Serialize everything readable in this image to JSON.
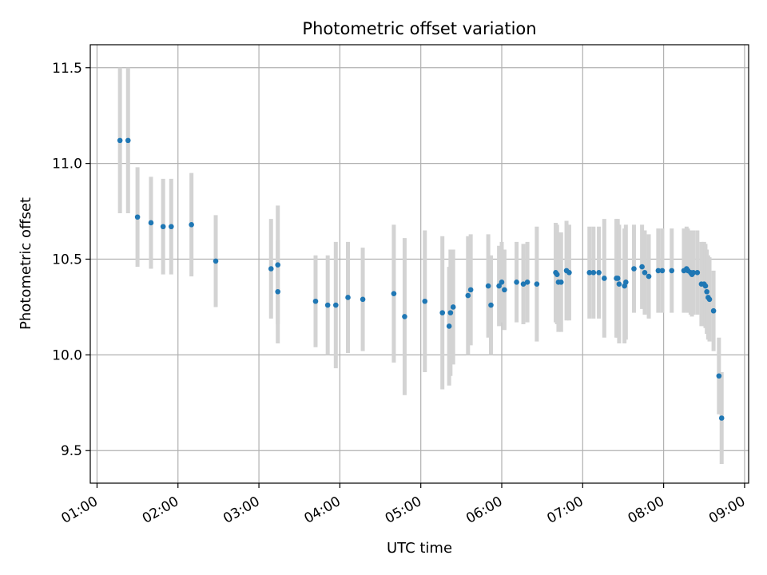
{
  "chart_data": {
    "type": "scatter",
    "title": "Photometric offset variation",
    "xlabel": "UTC time",
    "ylabel": "Photometric offset",
    "xlim": [
      "00:55",
      "09:03"
    ],
    "ylim": [
      9.33,
      11.62
    ],
    "x_ticks": [
      "01:00",
      "02:00",
      "03:00",
      "04:00",
      "05:00",
      "06:00",
      "07:00",
      "08:00",
      "09:00"
    ],
    "y_ticks": [
      "9.5",
      "10.0",
      "10.5",
      "11.0",
      "11.5"
    ],
    "grid": true,
    "colors": {
      "points": "#1f77b4",
      "errorbars": "#d3d3d3",
      "grid": "#b0b0b0"
    },
    "series": [
      {
        "points": [
          {
            "t": "01:17",
            "y": 11.12,
            "e": 0.38
          },
          {
            "t": "01:23",
            "y": 11.12,
            "e": 0.38
          },
          {
            "t": "01:30",
            "y": 10.72,
            "e": 0.26
          },
          {
            "t": "01:40",
            "y": 10.69,
            "e": 0.24
          },
          {
            "t": "01:49",
            "y": 10.67,
            "e": 0.25
          },
          {
            "t": "01:55",
            "y": 10.67,
            "e": 0.25
          },
          {
            "t": "02:10",
            "y": 10.68,
            "e": 0.27
          },
          {
            "t": "02:28",
            "y": 10.49,
            "e": 0.24
          },
          {
            "t": "03:09",
            "y": 10.45,
            "e": 0.26
          },
          {
            "t": "03:14",
            "y": 10.47,
            "e": 0.31
          },
          {
            "t": "03:14",
            "y": 10.33,
            "e": 0.27
          },
          {
            "t": "03:42",
            "y": 10.28,
            "e": 0.24
          },
          {
            "t": "03:51",
            "y": 10.26,
            "e": 0.26
          },
          {
            "t": "03:57",
            "y": 10.26,
            "e": 0.33
          },
          {
            "t": "04:06",
            "y": 10.3,
            "e": 0.29
          },
          {
            "t": "04:17",
            "y": 10.29,
            "e": 0.27
          },
          {
            "t": "04:40",
            "y": 10.32,
            "e": 0.36
          },
          {
            "t": "04:48",
            "y": 10.2,
            "e": 0.41
          },
          {
            "t": "05:03",
            "y": 10.28,
            "e": 0.37
          },
          {
            "t": "05:16",
            "y": 10.22,
            "e": 0.4
          },
          {
            "t": "05:21",
            "y": 10.15,
            "e": 0.31
          },
          {
            "t": "05:22",
            "y": 10.22,
            "e": 0.33
          },
          {
            "t": "05:24",
            "y": 10.25,
            "e": 0.3
          },
          {
            "t": "05:35",
            "y": 10.31,
            "e": 0.31
          },
          {
            "t": "05:37",
            "y": 10.34,
            "e": 0.29
          },
          {
            "t": "05:50",
            "y": 10.36,
            "e": 0.27
          },
          {
            "t": "05:52",
            "y": 10.26,
            "e": 0.26
          },
          {
            "t": "05:58",
            "y": 10.36,
            "e": 0.21
          },
          {
            "t": "06:00",
            "y": 10.38,
            "e": 0.21
          },
          {
            "t": "06:02",
            "y": 10.34,
            "e": 0.21
          },
          {
            "t": "06:11",
            "y": 10.38,
            "e": 0.21
          },
          {
            "t": "06:16",
            "y": 10.37,
            "e": 0.21
          },
          {
            "t": "06:19",
            "y": 10.38,
            "e": 0.21
          },
          {
            "t": "06:26",
            "y": 10.37,
            "e": 0.3
          },
          {
            "t": "06:40",
            "y": 10.43,
            "e": 0.26
          },
          {
            "t": "06:41",
            "y": 10.42,
            "e": 0.26
          },
          {
            "t": "06:42",
            "y": 10.38,
            "e": 0.26
          },
          {
            "t": "06:44",
            "y": 10.38,
            "e": 0.26
          },
          {
            "t": "06:48",
            "y": 10.44,
            "e": 0.26
          },
          {
            "t": "06:50",
            "y": 10.43,
            "e": 0.25
          },
          {
            "t": "07:05",
            "y": 10.43,
            "e": 0.24
          },
          {
            "t": "07:08",
            "y": 10.43,
            "e": 0.24
          },
          {
            "t": "07:12",
            "y": 10.43,
            "e": 0.24
          },
          {
            "t": "07:16",
            "y": 10.4,
            "e": 0.31
          },
          {
            "t": "07:25",
            "y": 10.4,
            "e": 0.31
          },
          {
            "t": "07:26",
            "y": 10.4,
            "e": 0.31
          },
          {
            "t": "07:27",
            "y": 10.37,
            "e": 0.31
          },
          {
            "t": "07:31",
            "y": 10.36,
            "e": 0.3
          },
          {
            "t": "07:32",
            "y": 10.38,
            "e": 0.3
          },
          {
            "t": "07:38",
            "y": 10.45,
            "e": 0.23
          },
          {
            "t": "07:44",
            "y": 10.46,
            "e": 0.22
          },
          {
            "t": "07:46",
            "y": 10.43,
            "e": 0.22
          },
          {
            "t": "07:49",
            "y": 10.41,
            "e": 0.22
          },
          {
            "t": "07:56",
            "y": 10.44,
            "e": 0.22
          },
          {
            "t": "07:59",
            "y": 10.44,
            "e": 0.22
          },
          {
            "t": "08:06",
            "y": 10.44,
            "e": 0.22
          },
          {
            "t": "08:15",
            "y": 10.44,
            "e": 0.22
          },
          {
            "t": "08:17",
            "y": 10.45,
            "e": 0.22
          },
          {
            "t": "08:18",
            "y": 10.44,
            "e": 0.22
          },
          {
            "t": "08:20",
            "y": 10.43,
            "e": 0.22
          },
          {
            "t": "08:21",
            "y": 10.42,
            "e": 0.22
          },
          {
            "t": "08:22",
            "y": 10.43,
            "e": 0.22
          },
          {
            "t": "08:25",
            "y": 10.43,
            "e": 0.22
          },
          {
            "t": "08:28",
            "y": 10.37,
            "e": 0.22
          },
          {
            "t": "08:30",
            "y": 10.37,
            "e": 0.22
          },
          {
            "t": "08:31",
            "y": 10.36,
            "e": 0.22
          },
          {
            "t": "08:32",
            "y": 10.33,
            "e": 0.22
          },
          {
            "t": "08:33",
            "y": 10.3,
            "e": 0.22
          },
          {
            "t": "08:34",
            "y": 10.29,
            "e": 0.22
          },
          {
            "t": "08:37",
            "y": 10.23,
            "e": 0.21
          },
          {
            "t": "08:41",
            "y": 9.89,
            "e": 0.2
          },
          {
            "t": "08:43",
            "y": 9.67,
            "e": 0.24
          }
        ]
      }
    ]
  }
}
